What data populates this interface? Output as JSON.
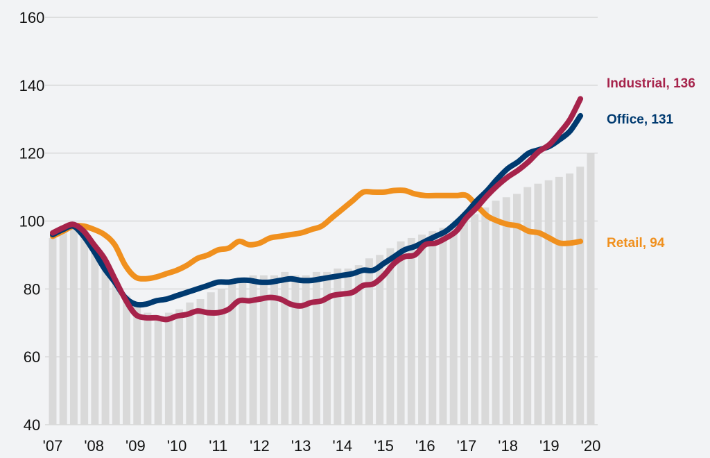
{
  "chart_data": {
    "type": "line",
    "title": "",
    "xlabel": "",
    "ylabel": "",
    "ylim": [
      40,
      160
    ],
    "yticks": [
      40,
      60,
      80,
      100,
      120,
      140,
      160
    ],
    "xlim": [
      2007,
      2020
    ],
    "xticks": [
      {
        "x": 2007,
        "label": "'07"
      },
      {
        "x": 2008,
        "label": "'08"
      },
      {
        "x": 2009,
        "label": "'09"
      },
      {
        "x": 2010,
        "label": "'10"
      },
      {
        "x": 2011,
        "label": "'11"
      },
      {
        "x": 2012,
        "label": "'12"
      },
      {
        "x": 2013,
        "label": "'13"
      },
      {
        "x": 2014,
        "label": "'14"
      },
      {
        "x": 2015,
        "label": "'15"
      },
      {
        "x": 2016,
        "label": "'16"
      },
      {
        "x": 2017,
        "label": "'17"
      },
      {
        "x": 2018,
        "label": "'18"
      },
      {
        "x": 2019,
        "label": "'19"
      },
      {
        "x": 2020,
        "label": "'20"
      }
    ],
    "grid": true,
    "bars": {
      "color": "#d9d9d9",
      "values": [
        95,
        97,
        99,
        98,
        92,
        87,
        82,
        78,
        75,
        73,
        72,
        73,
        74,
        76,
        77,
        79,
        80,
        82,
        83,
        84,
        84,
        84,
        85,
        84,
        84,
        85,
        85,
        86,
        86,
        87,
        89,
        90,
        92,
        94,
        95,
        96,
        97,
        98,
        99,
        100,
        102,
        104,
        106,
        107,
        108,
        110,
        111,
        112,
        113,
        114,
        116,
        120
      ]
    },
    "series": [
      {
        "name": "Industrial",
        "label": "Industrial, 136",
        "color": "#a6234b",
        "points": [
          [
            2007.0,
            96.5
          ],
          [
            2007.25,
            98
          ],
          [
            2007.5,
            99
          ],
          [
            2007.75,
            97
          ],
          [
            2008.0,
            93
          ],
          [
            2008.25,
            89
          ],
          [
            2008.5,
            83
          ],
          [
            2008.75,
            77
          ],
          [
            2009.0,
            72.5
          ],
          [
            2009.25,
            71.5
          ],
          [
            2009.5,
            71.5
          ],
          [
            2009.75,
            71
          ],
          [
            2010.0,
            72
          ],
          [
            2010.25,
            72.5
          ],
          [
            2010.5,
            73.5
          ],
          [
            2010.75,
            73
          ],
          [
            2011.0,
            73
          ],
          [
            2011.25,
            74
          ],
          [
            2011.5,
            76.5
          ],
          [
            2011.75,
            76.5
          ],
          [
            2012.0,
            77
          ],
          [
            2012.25,
            77.5
          ],
          [
            2012.5,
            77
          ],
          [
            2012.75,
            75.5
          ],
          [
            2013.0,
            75
          ],
          [
            2013.25,
            76
          ],
          [
            2013.5,
            76.5
          ],
          [
            2013.75,
            78
          ],
          [
            2014.0,
            78.5
          ],
          [
            2014.25,
            79
          ],
          [
            2014.5,
            81
          ],
          [
            2014.75,
            81.5
          ],
          [
            2015.0,
            84
          ],
          [
            2015.25,
            87.5
          ],
          [
            2015.5,
            89.5
          ],
          [
            2015.75,
            90
          ],
          [
            2016.0,
            93
          ],
          [
            2016.25,
            93.5
          ],
          [
            2016.5,
            95
          ],
          [
            2016.75,
            97
          ],
          [
            2017.0,
            101
          ],
          [
            2017.25,
            104
          ],
          [
            2017.5,
            107.5
          ],
          [
            2017.75,
            110.5
          ],
          [
            2018.0,
            113
          ],
          [
            2018.25,
            115
          ],
          [
            2018.5,
            117.5
          ],
          [
            2018.75,
            120.5
          ],
          [
            2019.0,
            122.5
          ],
          [
            2019.25,
            126
          ],
          [
            2019.5,
            130
          ],
          [
            2019.75,
            136
          ]
        ]
      },
      {
        "name": "Office",
        "label": "Office, 131",
        "color": "#003a70",
        "points": [
          [
            2007.0,
            96
          ],
          [
            2007.25,
            97.5
          ],
          [
            2007.5,
            98.5
          ],
          [
            2007.75,
            95.5
          ],
          [
            2008.0,
            91
          ],
          [
            2008.25,
            86
          ],
          [
            2008.5,
            82
          ],
          [
            2008.75,
            77.5
          ],
          [
            2009.0,
            75.5
          ],
          [
            2009.25,
            75.5
          ],
          [
            2009.5,
            76.5
          ],
          [
            2009.75,
            77
          ],
          [
            2010.0,
            78
          ],
          [
            2010.25,
            79
          ],
          [
            2010.5,
            80
          ],
          [
            2010.75,
            81
          ],
          [
            2011.0,
            82
          ],
          [
            2011.25,
            82
          ],
          [
            2011.5,
            82.5
          ],
          [
            2011.75,
            82.5
          ],
          [
            2012.0,
            82
          ],
          [
            2012.25,
            82
          ],
          [
            2012.5,
            82.5
          ],
          [
            2012.75,
            83
          ],
          [
            2013.0,
            82.5
          ],
          [
            2013.25,
            82.5
          ],
          [
            2013.5,
            83
          ],
          [
            2013.75,
            83.5
          ],
          [
            2014.0,
            84
          ],
          [
            2014.25,
            84.5
          ],
          [
            2014.5,
            85.5
          ],
          [
            2014.75,
            85.5
          ],
          [
            2015.0,
            87.5
          ],
          [
            2015.25,
            89.5
          ],
          [
            2015.5,
            91.5
          ],
          [
            2015.75,
            92.5
          ],
          [
            2016.0,
            94
          ],
          [
            2016.25,
            95.5
          ],
          [
            2016.5,
            97
          ],
          [
            2016.75,
            99.5
          ],
          [
            2017.0,
            102.5
          ],
          [
            2017.25,
            106
          ],
          [
            2017.5,
            109
          ],
          [
            2017.75,
            112.5
          ],
          [
            2018.0,
            115.5
          ],
          [
            2018.25,
            117.5
          ],
          [
            2018.5,
            120
          ],
          [
            2018.75,
            121
          ],
          [
            2019.0,
            122
          ],
          [
            2019.25,
            124
          ],
          [
            2019.5,
            126.5
          ],
          [
            2019.75,
            131
          ]
        ]
      },
      {
        "name": "Retail",
        "label": "Retail, 94",
        "color": "#f0901e",
        "points": [
          [
            2007.0,
            95.5
          ],
          [
            2007.25,
            97
          ],
          [
            2007.5,
            98.5
          ],
          [
            2007.75,
            98.5
          ],
          [
            2008.0,
            97.5
          ],
          [
            2008.25,
            96
          ],
          [
            2008.5,
            93
          ],
          [
            2008.75,
            87
          ],
          [
            2009.0,
            83.5
          ],
          [
            2009.25,
            83
          ],
          [
            2009.5,
            83.5
          ],
          [
            2009.75,
            84.5
          ],
          [
            2010.0,
            85.5
          ],
          [
            2010.25,
            87
          ],
          [
            2010.5,
            89
          ],
          [
            2010.75,
            90
          ],
          [
            2011.0,
            91.5
          ],
          [
            2011.25,
            92
          ],
          [
            2011.5,
            94
          ],
          [
            2011.75,
            93
          ],
          [
            2012.0,
            93.5
          ],
          [
            2012.25,
            95
          ],
          [
            2012.5,
            95.5
          ],
          [
            2012.75,
            96
          ],
          [
            2013.0,
            96.5
          ],
          [
            2013.25,
            97.5
          ],
          [
            2013.5,
            98.5
          ],
          [
            2013.75,
            101
          ],
          [
            2014.0,
            103.5
          ],
          [
            2014.25,
            106
          ],
          [
            2014.5,
            108.5
          ],
          [
            2014.75,
            108.5
          ],
          [
            2015.0,
            108.5
          ],
          [
            2015.25,
            109
          ],
          [
            2015.5,
            109
          ],
          [
            2015.75,
            108
          ],
          [
            2016.0,
            107.5
          ],
          [
            2016.25,
            107.5
          ],
          [
            2016.5,
            107.5
          ],
          [
            2016.75,
            107.5
          ],
          [
            2017.0,
            107.5
          ],
          [
            2017.25,
            104.5
          ],
          [
            2017.5,
            101.5
          ],
          [
            2017.75,
            100
          ],
          [
            2018.0,
            99
          ],
          [
            2018.25,
            98.5
          ],
          [
            2018.5,
            97
          ],
          [
            2018.75,
            96.5
          ],
          [
            2019.0,
            95
          ],
          [
            2019.25,
            93.5
          ],
          [
            2019.5,
            93.5
          ],
          [
            2019.75,
            94
          ]
        ]
      }
    ]
  }
}
